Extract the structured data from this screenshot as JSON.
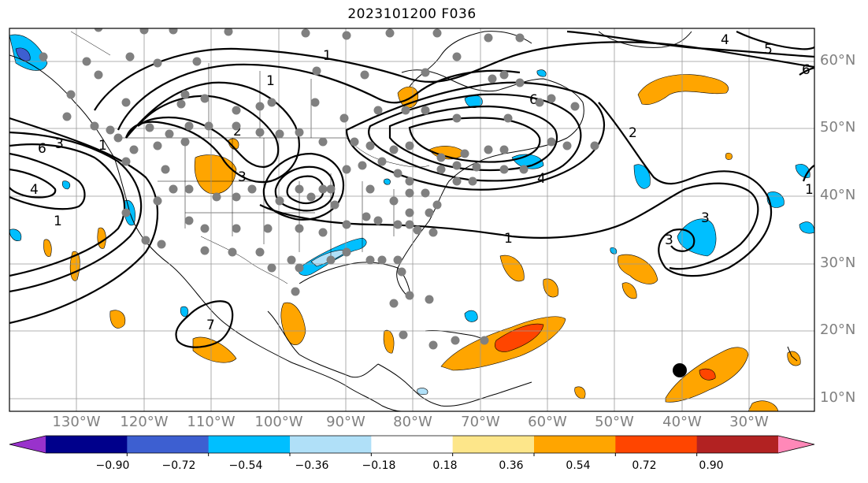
{
  "title": "2023101200 F036",
  "lat_labels": [
    "60°N",
    "50°N",
    "40°N",
    "30°N",
    "20°N",
    "10°N"
  ],
  "lon_labels": [
    "130°W",
    "120°W",
    "110°W",
    "100°W",
    "90°W",
    "80°W",
    "70°W",
    "60°W",
    "50°W",
    "40°W",
    "30°W"
  ],
  "contour_labels": [
    "1",
    "1",
    "1",
    "1",
    "1",
    "1",
    "2",
    "2",
    "3",
    "3",
    "3",
    "3",
    "4",
    "4",
    "4",
    "5",
    "6",
    "6",
    "6",
    "7"
  ],
  "colorbar": {
    "ticks": [
      "−0.90",
      "−0.72",
      "−0.54",
      "−0.36",
      "−0.18",
      "0.18",
      "0.36",
      "0.54",
      "0.72",
      "0.90"
    ],
    "colors": [
      "#9932cc",
      "#00008b",
      "#3d5fd1",
      "#00bfff",
      "#b0e0f8",
      "#ffffff",
      "#fde68a",
      "#ffa500",
      "#ff4500",
      "#b22222",
      "#ff88b8"
    ]
  },
  "marker_color": "#000000",
  "station_color": "#808080"
}
